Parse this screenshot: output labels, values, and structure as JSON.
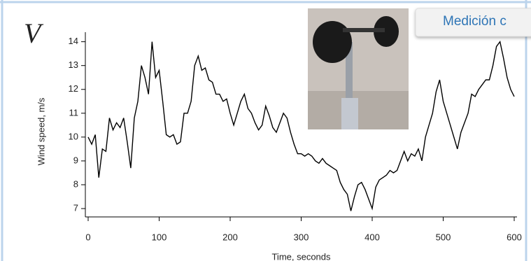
{
  "slide": {
    "tab_label": "Medición c",
    "variable": "V"
  },
  "chart_data": {
    "type": "line",
    "x_label": "Time, seconds",
    "y_label": "Wind speed, m/s",
    "x": [
      0,
      5,
      10,
      15,
      20,
      25,
      30,
      35,
      40,
      45,
      50,
      55,
      60,
      65,
      70,
      75,
      80,
      85,
      90,
      95,
      100,
      105,
      110,
      115,
      120,
      125,
      130,
      135,
      140,
      145,
      150,
      155,
      160,
      165,
      170,
      175,
      180,
      185,
      190,
      195,
      200,
      205,
      210,
      215,
      220,
      225,
      230,
      235,
      240,
      245,
      250,
      255,
      260,
      265,
      270,
      275,
      280,
      285,
      290,
      295,
      300,
      305,
      310,
      315,
      320,
      325,
      330,
      335,
      340,
      345,
      350,
      355,
      360,
      365,
      370,
      375,
      380,
      385,
      390,
      395,
      400,
      405,
      410,
      415,
      420,
      425,
      430,
      435,
      440,
      445,
      450,
      455,
      460,
      465,
      470,
      475,
      480,
      485,
      490,
      495,
      500,
      505,
      510,
      515,
      520,
      525,
      530,
      535,
      540,
      545,
      550,
      555,
      560,
      565,
      570,
      575,
      580,
      585,
      590,
      595,
      600
    ],
    "series": [
      {
        "color": "#000000",
        "values": [
          10,
          9.7,
          10.1,
          8.3,
          9.5,
          9.4,
          10.8,
          10.3,
          10.6,
          10.4,
          10.8,
          9.8,
          8.7,
          10.8,
          11.5,
          13,
          12.5,
          11.8,
          14,
          12.5,
          12.8,
          11.5,
          10.1,
          10,
          10.1,
          9.7,
          9.8,
          11,
          11,
          11.5,
          13,
          13.4,
          12.8,
          12.9,
          12.4,
          12.3,
          11.8,
          11.8,
          11.5,
          11.6,
          11,
          10.5,
          11,
          11.5,
          11.8,
          11.2,
          11,
          10.6,
          10.3,
          10.5,
          11.3,
          10.9,
          10.4,
          10.2,
          10.6,
          11,
          10.8,
          10.2,
          9.7,
          9.3,
          9.3,
          9.2,
          9.3,
          9.2,
          9,
          8.9,
          9.1,
          8.9,
          8.8,
          8.7,
          8.6,
          8.1,
          7.8,
          7.6,
          6.9,
          7.5,
          8,
          8.1,
          7.8,
          7.4,
          7,
          7.9,
          8.2,
          8.3,
          8.4,
          8.6,
          8.5,
          8.6,
          9,
          9.4,
          9,
          9.3,
          9.2,
          9.5,
          9,
          10,
          10.5,
          11,
          11.9,
          12.4,
          11.5,
          11,
          10.5,
          10,
          9.5,
          10.2,
          10.6,
          11,
          11.8,
          11.7,
          12,
          12.2,
          12.4,
          12.4,
          13,
          13.8,
          14,
          13.3,
          12.5,
          12,
          11.7
        ]
      }
    ],
    "xlim": [
      0,
      600
    ],
    "xticks": [
      0,
      100,
      200,
      300,
      400,
      500,
      600
    ],
    "ylim": [
      6.65,
      14.4
    ],
    "yticks": [
      7,
      8,
      9,
      10,
      11,
      12,
      13,
      14
    ],
    "grid": false
  }
}
